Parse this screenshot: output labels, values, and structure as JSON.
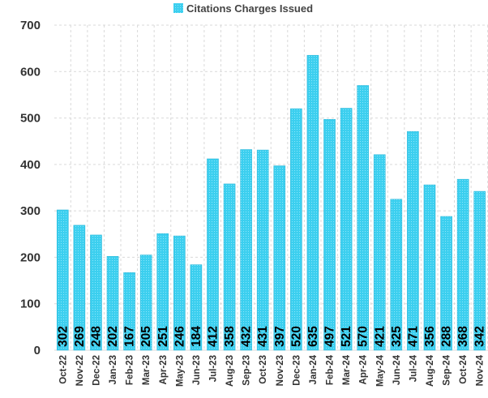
{
  "chart_data": {
    "type": "bar",
    "legend": [
      "Citations Charges Issued"
    ],
    "legend_position": "top",
    "categories": [
      "Oct-22",
      "Nov-22",
      "Dec-22",
      "Jan-23",
      "Feb-23",
      "Mar-23",
      "Apr-23",
      "May-23",
      "Jun-23",
      "Jul-23",
      "Aug-23",
      "Sep-23",
      "Oct-23",
      "Nov-23",
      "Dec-23",
      "Jan-24",
      "Feb-24",
      "Mar-24",
      "Apr-24",
      "May-24",
      "Jun-24",
      "Jul-24",
      "Aug-24",
      "Sep-24",
      "Oct-24",
      "Nov-24"
    ],
    "series": [
      {
        "name": "Citations Charges Issued",
        "color": "#3ccfef",
        "values": [
          302,
          269,
          248,
          202,
          167,
          205,
          251,
          246,
          184,
          412,
          358,
          432,
          431,
          397,
          520,
          635,
          497,
          521,
          570,
          421,
          325,
          471,
          356,
          288,
          368,
          342
        ]
      }
    ],
    "ylim": [
      0,
      700
    ],
    "yticks": [
      "0",
      "100",
      "200",
      "300",
      "400",
      "500",
      "600",
      "700"
    ],
    "grid": true
  }
}
